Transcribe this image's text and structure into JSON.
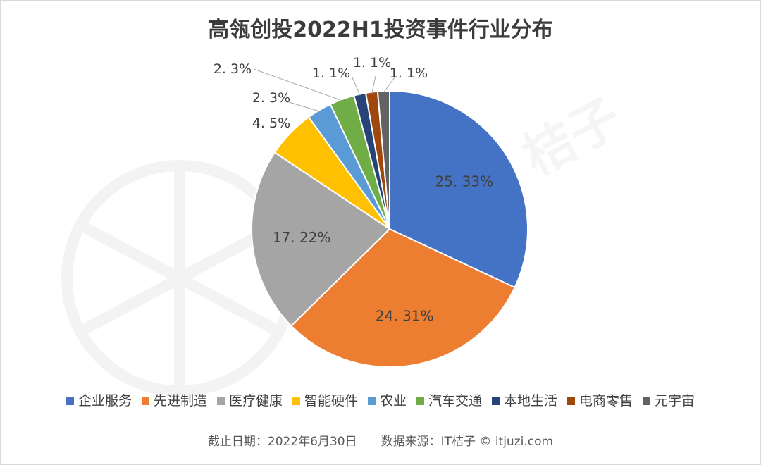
{
  "chart_data": {
    "type": "pie",
    "title": "高瓴创投2022H1投资事件行业分布",
    "slices": [
      {
        "name": "企业服务",
        "value": 25.33,
        "label": "25. 33%",
        "color": "#4472c4"
      },
      {
        "name": "先进制造",
        "value": 24.31,
        "label": "24. 31%",
        "color": "#ed7d31"
      },
      {
        "name": "医疗健康",
        "value": 17.22,
        "label": "17. 22%",
        "color": "#a5a5a5"
      },
      {
        "name": "智能硬件",
        "value": 4.5,
        "label": "4. 5%",
        "color": "#ffc000"
      },
      {
        "name": "农业",
        "value": 2.3,
        "label": "2. 3%",
        "color": "#5b9bd5"
      },
      {
        "name": "汽车交通",
        "value": 2.3,
        "label": "2. 3%",
        "color": "#70ad47"
      },
      {
        "name": "本地生活",
        "value": 1.1,
        "label": "1. 1%",
        "color": "#264478"
      },
      {
        "name": "电商零售",
        "value": 1.1,
        "label": "1. 1%",
        "color": "#9e480e"
      },
      {
        "name": "元宇宙",
        "value": 1.1,
        "label": "1. 1%",
        "color": "#636363"
      }
    ],
    "legend_position": "bottom"
  },
  "footer": {
    "text": "截止日期：2022年6月30日　　数据来源：IT桔子 © itjuzi.com"
  },
  "watermark": {
    "text": "桔子"
  }
}
